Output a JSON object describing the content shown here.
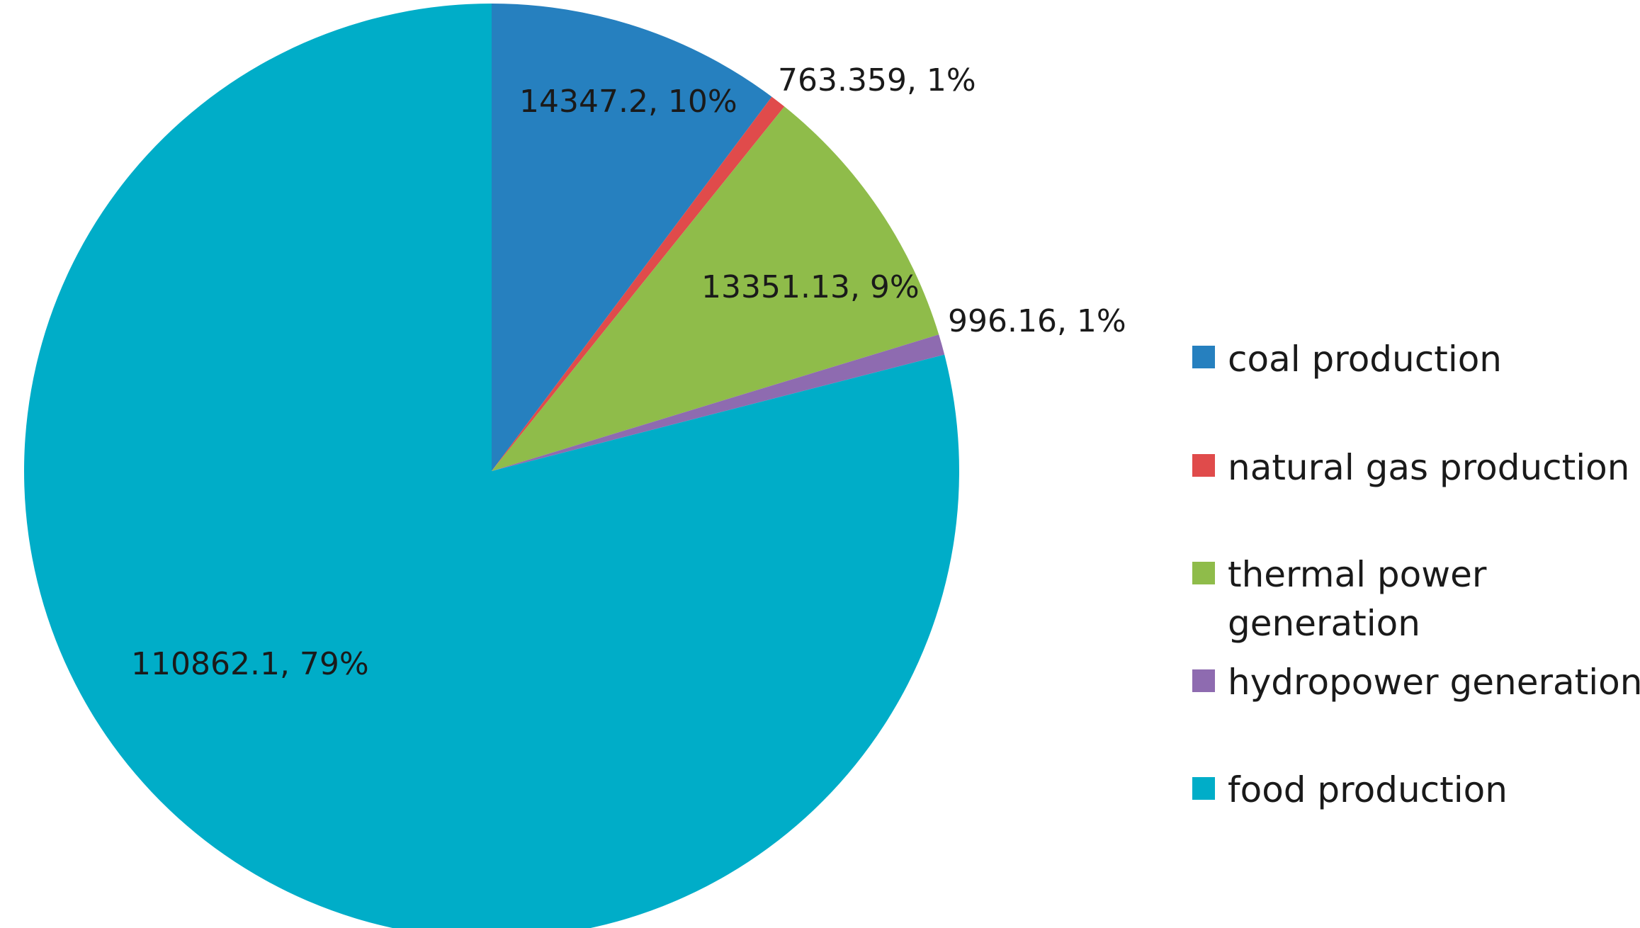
{
  "chart_data": {
    "type": "pie",
    "start_angle": "12 o'clock",
    "direction": "clockwise",
    "legend_position": "right",
    "slices": [
      {
        "label": "coal production",
        "value": 14347.2,
        "percent_label": "14347.2, 10%",
        "color": "#2680bf"
      },
      {
        "label": "natural gas production",
        "value": 763.359,
        "percent_label": "763.359, 1%",
        "color": "#e04b4b"
      },
      {
        "label": "thermal power generation",
        "value": 13351.13,
        "percent_label": "13351.13, 9%",
        "color": "#8fbc4a"
      },
      {
        "label": "hydropower generation",
        "value": 996.16,
        "percent_label": "996.16, 1%",
        "color": "#8e6bb0"
      },
      {
        "label": "food production",
        "value": 110862.1,
        "percent_label": "110862.1, 79%",
        "color": "#00adc8"
      }
    ]
  }
}
